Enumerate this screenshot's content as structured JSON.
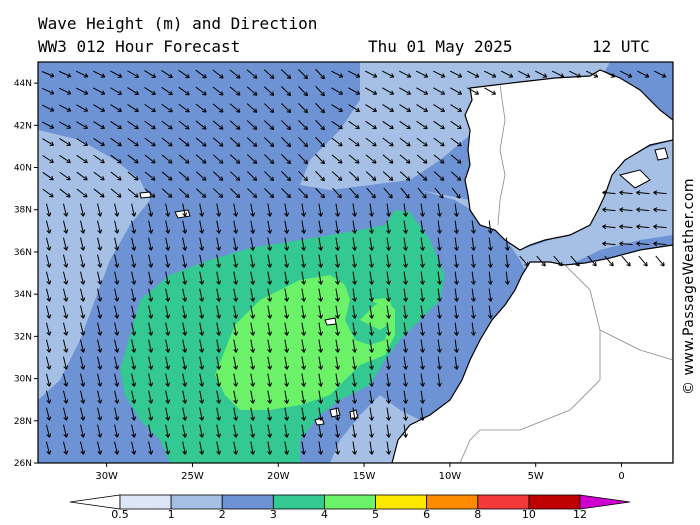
{
  "header": {
    "title": "Wave Height (m) and Direction",
    "model": "WW3 012 Hour Forecast",
    "date": "Thu 01 May 2025",
    "time": "12 UTC"
  },
  "copyright": "© www.PassageWeather.com",
  "map": {
    "lat_labels": [
      "44N",
      "42N",
      "40N",
      "38N",
      "36N",
      "34N",
      "32N",
      "30N",
      "28N",
      "26N"
    ],
    "lat_values": [
      44,
      42,
      40,
      38,
      36,
      34,
      32,
      30,
      28,
      26
    ],
    "lon_labels": [
      "30W",
      "25W",
      "20W",
      "15W",
      "10W",
      "5W",
      "0"
    ],
    "lon_values": [
      -30,
      -25,
      -20,
      -15,
      -10,
      -5,
      0
    ],
    "lat_range": [
      26,
      45
    ],
    "lon_range": [
      -34,
      3
    ],
    "land_color": "#ffffff",
    "arrow_color": "#000000"
  },
  "legend": {
    "labels": [
      "0.5",
      "1",
      "2",
      "3",
      "4",
      "5",
      "6",
      "8",
      "10",
      "12"
    ],
    "colors": [
      "#ffffff",
      "#dce6f6",
      "#a5c0e4",
      "#6e93d4",
      "#34c893",
      "#6cf268",
      "#ffe800",
      "#ff8c00",
      "#f23a3a",
      "#be0000",
      "#d000d0"
    ]
  }
}
